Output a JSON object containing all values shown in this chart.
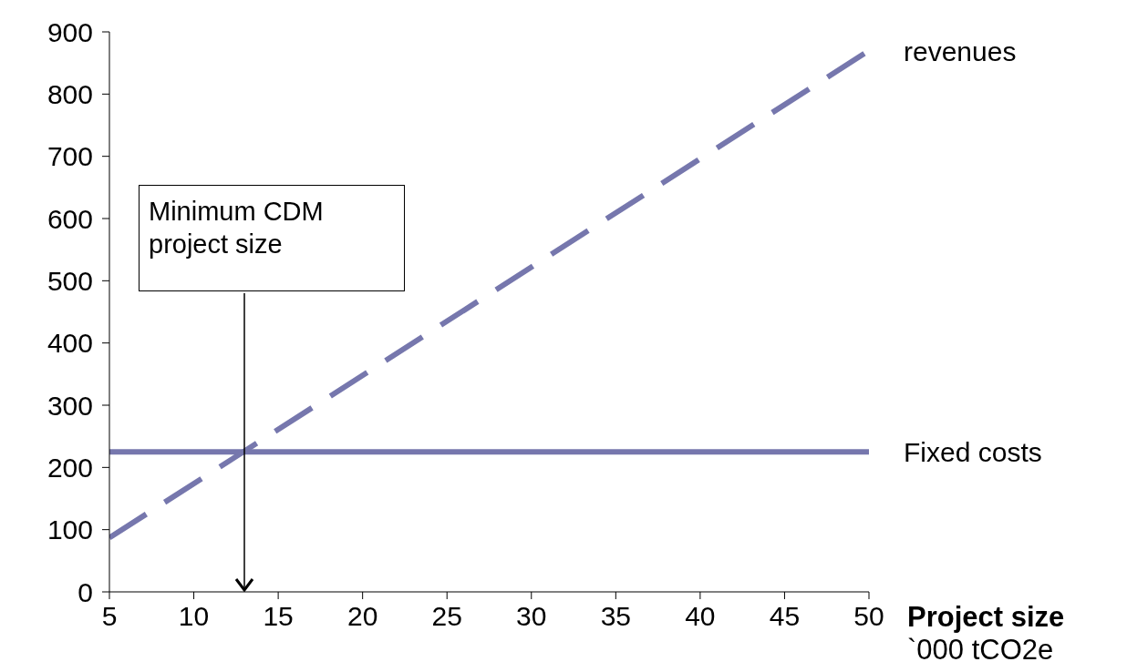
{
  "chart_data": {
    "type": "line",
    "xlabel": "Project size",
    "x": [
      5,
      50
    ],
    "series": [
      {
        "name": "revenues",
        "color": "#7677ad",
        "values": [
          87,
          870
        ],
        "line_style": "dashed"
      },
      {
        "name": "Fixed costs",
        "color": "#7677ad",
        "values": [
          225,
          225
        ],
        "line_style": "solid"
      }
    ],
    "xlim": [
      5,
      50
    ],
    "xticks": [
      5,
      10,
      15,
      20,
      25,
      30,
      35,
      40,
      45,
      50
    ],
    "ylim": [
      0,
      900
    ],
    "yticks": [
      0,
      100,
      200,
      300,
      400,
      500,
      600,
      700,
      800,
      900
    ],
    "grid": false,
    "legend": false,
    "marker": "none",
    "annotations": [
      "Minimum CDM project size",
      "`000 tCO2e"
    ]
  }
}
